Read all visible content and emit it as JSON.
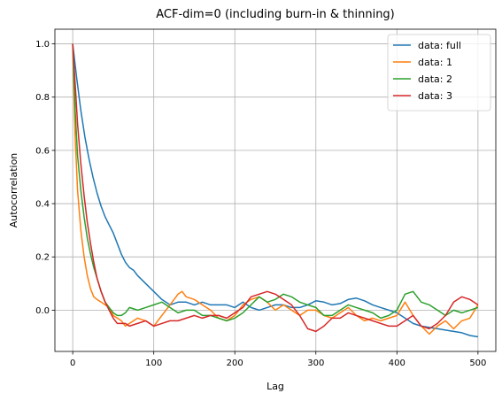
{
  "chart_data": {
    "type": "line",
    "title": "ACF-dim=0 (including burn-in & thinning)",
    "xlabel": "Lag",
    "ylabel": "Autocorrelation",
    "xlim": [
      -22,
      522
    ],
    "ylim": [
      -0.155,
      1.055
    ],
    "xticks": [
      0,
      100,
      200,
      300,
      400,
      500
    ],
    "yticks": [
      0.0,
      0.2,
      0.4,
      0.6,
      0.8,
      1.0
    ],
    "xtick_labels": [
      "0",
      "100",
      "200",
      "300",
      "400",
      "500"
    ],
    "ytick_labels": [
      "0.0",
      "0.2",
      "0.4",
      "0.6",
      "0.8",
      "1.0"
    ],
    "grid": true,
    "legend_position": "top-right",
    "series": [
      {
        "name": "data: full",
        "color": "#1f77b4",
        "x": [
          0,
          5,
          10,
          15,
          20,
          25,
          30,
          35,
          40,
          45,
          50,
          55,
          60,
          65,
          70,
          75,
          80,
          90,
          100,
          110,
          120,
          130,
          140,
          150,
          160,
          170,
          180,
          190,
          200,
          210,
          220,
          230,
          240,
          250,
          260,
          270,
          280,
          290,
          300,
          310,
          320,
          330,
          340,
          350,
          360,
          370,
          380,
          390,
          400,
          410,
          420,
          430,
          440,
          450,
          460,
          470,
          480,
          490,
          500
        ],
        "y": [
          1.0,
          0.87,
          0.75,
          0.65,
          0.57,
          0.5,
          0.44,
          0.39,
          0.35,
          0.32,
          0.29,
          0.25,
          0.21,
          0.18,
          0.16,
          0.15,
          0.13,
          0.1,
          0.07,
          0.04,
          0.02,
          0.03,
          0.03,
          0.02,
          0.03,
          0.02,
          0.02,
          0.02,
          0.01,
          0.03,
          0.01,
          0.0,
          0.01,
          0.02,
          0.02,
          0.01,
          0.01,
          0.02,
          0.035,
          0.03,
          0.02,
          0.025,
          0.04,
          0.045,
          0.035,
          0.02,
          0.01,
          0.0,
          -0.01,
          -0.03,
          -0.05,
          -0.06,
          -0.065,
          -0.07,
          -0.075,
          -0.08,
          -0.085,
          -0.095,
          -0.1
        ]
      },
      {
        "name": "data: 1",
        "color": "#ff7f0e",
        "x": [
          0,
          3,
          6,
          10,
          14,
          18,
          22,
          26,
          30,
          35,
          40,
          45,
          50,
          55,
          60,
          65,
          70,
          80,
          90,
          100,
          110,
          120,
          130,
          135,
          140,
          150,
          160,
          170,
          180,
          190,
          200,
          210,
          220,
          230,
          240,
          250,
          260,
          270,
          280,
          290,
          300,
          310,
          320,
          330,
          340,
          350,
          360,
          370,
          380,
          390,
          400,
          410,
          420,
          430,
          440,
          450,
          460,
          470,
          480,
          490,
          500
        ],
        "y": [
          1.0,
          0.65,
          0.45,
          0.3,
          0.2,
          0.13,
          0.08,
          0.05,
          0.04,
          0.03,
          0.02,
          0.01,
          -0.02,
          -0.03,
          -0.04,
          -0.06,
          -0.05,
          -0.03,
          -0.04,
          -0.06,
          -0.02,
          0.02,
          0.06,
          0.07,
          0.05,
          0.04,
          0.02,
          0.0,
          -0.03,
          -0.04,
          -0.02,
          0.02,
          0.04,
          0.05,
          0.03,
          0.0,
          0.02,
          0.0,
          -0.02,
          0.0,
          0.0,
          -0.02,
          -0.03,
          -0.01,
          0.01,
          -0.02,
          -0.04,
          -0.03,
          -0.04,
          -0.03,
          -0.02,
          0.03,
          -0.02,
          -0.06,
          -0.09,
          -0.06,
          -0.04,
          -0.07,
          -0.04,
          -0.03,
          0.02
        ]
      },
      {
        "name": "data: 2",
        "color": "#2ca02c",
        "x": [
          0,
          3,
          6,
          10,
          14,
          18,
          22,
          26,
          30,
          35,
          40,
          45,
          50,
          55,
          60,
          65,
          70,
          80,
          90,
          100,
          110,
          120,
          130,
          140,
          150,
          160,
          170,
          180,
          190,
          200,
          210,
          220,
          230,
          240,
          250,
          260,
          270,
          280,
          290,
          300,
          310,
          320,
          330,
          340,
          350,
          360,
          370,
          380,
          390,
          400,
          410,
          420,
          430,
          440,
          450,
          460,
          470,
          480,
          490,
          500
        ],
        "y": [
          1.0,
          0.75,
          0.58,
          0.45,
          0.35,
          0.27,
          0.21,
          0.16,
          0.12,
          0.07,
          0.03,
          0.01,
          -0.01,
          -0.02,
          -0.02,
          -0.01,
          0.01,
          0.0,
          0.01,
          0.02,
          0.03,
          0.01,
          -0.01,
          0.0,
          0.0,
          -0.02,
          -0.02,
          -0.03,
          -0.04,
          -0.03,
          -0.01,
          0.02,
          0.05,
          0.03,
          0.04,
          0.06,
          0.05,
          0.03,
          0.02,
          0.01,
          -0.02,
          -0.02,
          0.0,
          0.02,
          0.01,
          0.0,
          -0.01,
          -0.03,
          -0.02,
          0.0,
          0.06,
          0.07,
          0.03,
          0.02,
          0.0,
          -0.02,
          0.0,
          -0.01,
          0.0,
          0.01
        ]
      },
      {
        "name": "data: 3",
        "color": "#d62728",
        "x": [
          0,
          3,
          6,
          10,
          14,
          18,
          22,
          26,
          30,
          35,
          40,
          45,
          50,
          55,
          60,
          65,
          70,
          80,
          90,
          100,
          110,
          120,
          130,
          140,
          150,
          160,
          170,
          180,
          190,
          200,
          210,
          220,
          230,
          240,
          250,
          260,
          270,
          280,
          290,
          300,
          310,
          320,
          330,
          340,
          350,
          360,
          370,
          380,
          390,
          400,
          410,
          420,
          430,
          440,
          450,
          460,
          470,
          480,
          490,
          500
        ],
        "y": [
          1.0,
          0.85,
          0.7,
          0.55,
          0.43,
          0.33,
          0.25,
          0.18,
          0.12,
          0.07,
          0.03,
          0.0,
          -0.03,
          -0.05,
          -0.05,
          -0.05,
          -0.06,
          -0.05,
          -0.04,
          -0.06,
          -0.05,
          -0.04,
          -0.04,
          -0.03,
          -0.02,
          -0.03,
          -0.02,
          -0.02,
          -0.03,
          -0.01,
          0.01,
          0.05,
          0.06,
          0.07,
          0.06,
          0.04,
          0.02,
          -0.02,
          -0.07,
          -0.08,
          -0.06,
          -0.03,
          -0.03,
          -0.01,
          -0.02,
          -0.03,
          -0.04,
          -0.05,
          -0.06,
          -0.06,
          -0.04,
          -0.02,
          -0.06,
          -0.07,
          -0.05,
          -0.02,
          0.03,
          0.05,
          0.04,
          0.02
        ]
      }
    ]
  }
}
